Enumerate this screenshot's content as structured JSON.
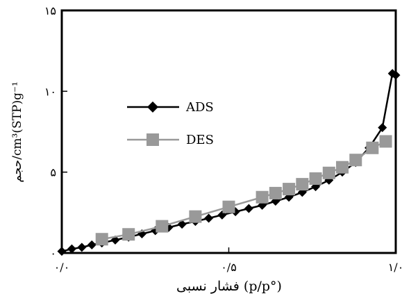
{
  "chart_data": {
    "type": "line",
    "xlabel": "فشار نسبی (p/p°)",
    "ylabel": "حجم/cm³(STP)g⁻¹",
    "xlim": [
      0,
      1.0
    ],
    "ylim": [
      0,
      15
    ],
    "x_ticks": [
      {
        "value": 0,
        "label": "۰/۰"
      },
      {
        "value": 0.5,
        "label": "۰/۵"
      },
      {
        "value": 1.0,
        "label": "۱/۰"
      }
    ],
    "y_ticks": [
      {
        "value": 0,
        "label": "۰"
      },
      {
        "value": 5,
        "label": "۵"
      },
      {
        "value": 10,
        "label": "۱۰"
      },
      {
        "value": 15,
        "label": "۱۵"
      }
    ],
    "grid": false,
    "legend_position": "center-left",
    "series": [
      {
        "name": "ADS",
        "marker": "diamond",
        "color": "#000000",
        "x": [
          0.0,
          0.03,
          0.06,
          0.09,
          0.12,
          0.16,
          0.2,
          0.24,
          0.28,
          0.32,
          0.36,
          0.4,
          0.44,
          0.48,
          0.52,
          0.56,
          0.6,
          0.64,
          0.68,
          0.72,
          0.76,
          0.8,
          0.84,
          0.88,
          0.92,
          0.96,
          0.99,
          1.0
        ],
        "y": [
          0.1,
          0.25,
          0.35,
          0.5,
          0.62,
          0.8,
          0.98,
          1.18,
          1.38,
          1.58,
          1.78,
          1.95,
          2.15,
          2.35,
          2.55,
          2.75,
          2.95,
          3.2,
          3.45,
          3.75,
          4.1,
          4.5,
          5.0,
          5.6,
          6.5,
          7.75,
          11.1,
          11.0
        ]
      },
      {
        "name": "DES",
        "marker": "square",
        "color": "#999999",
        "x": [
          0.12,
          0.2,
          0.3,
          0.4,
          0.5,
          0.6,
          0.64,
          0.68,
          0.72,
          0.76,
          0.8,
          0.84,
          0.88,
          0.93,
          0.97
        ],
        "y": [
          0.85,
          1.15,
          1.65,
          2.25,
          2.85,
          3.45,
          3.7,
          3.95,
          4.25,
          4.6,
          4.95,
          5.3,
          5.75,
          6.5,
          6.9
        ]
      }
    ]
  }
}
